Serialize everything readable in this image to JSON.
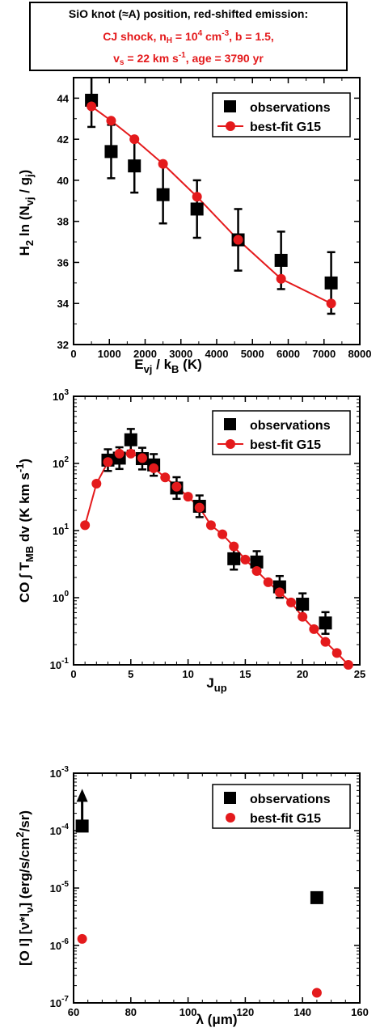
{
  "header": {
    "line1": "SiO knot (≈A) position, red-shifted emission:",
    "line2_a": "CJ shock, n",
    "line2_sub": "H",
    "line2_b": " = 10",
    "line2_sup": "4",
    "line2_c": " cm",
    "line2_sup2": "-3",
    "line2_d": ", b = 1.5,",
    "line3_a": "v",
    "line3_sub": "s",
    "line3_b": " = 22 km s",
    "line3_sup": "-1",
    "line3_c": ", age = 3790 yr"
  },
  "colors": {
    "model": "#e41a1c",
    "observations": "#000000"
  },
  "chart_data": [
    {
      "type": "scatter",
      "title": "",
      "xlabel": "E_vj / k_B (K)",
      "ylabel": "H_2 ln (N_vj / g_j)",
      "xlim": [
        0,
        8000
      ],
      "ylim": [
        32,
        45
      ],
      "xticks": [
        0,
        1000,
        2000,
        3000,
        4000,
        5000,
        6000,
        7000,
        8000
      ],
      "yticks": [
        32,
        34,
        36,
        38,
        40,
        42,
        44
      ],
      "legend": [
        "observations",
        "best-fit G15"
      ],
      "legend_position": "top-right",
      "series": [
        {
          "name": "observations",
          "x": [
            500,
            1050,
            1700,
            2500,
            3450,
            4600,
            5800,
            7200
          ],
          "y": [
            43.9,
            41.4,
            40.7,
            39.3,
            38.6,
            37.1,
            36.1,
            35.0
          ],
          "err": [
            1.3,
            1.3,
            1.3,
            1.4,
            1.4,
            1.5,
            1.4,
            1.5
          ]
        },
        {
          "name": "best-fit G15",
          "x": [
            500,
            1050,
            1700,
            2500,
            3450,
            4600,
            5800,
            7200
          ],
          "y": [
            43.6,
            42.9,
            42.0,
            40.8,
            39.2,
            37.1,
            35.2,
            34.0
          ]
        }
      ]
    },
    {
      "type": "scatter",
      "title": "",
      "xlabel": "J_up",
      "ylabel": "CO ∫ T_MB dv (K km s^-1)",
      "xlim": [
        0,
        25
      ],
      "ylim": [
        0.1,
        1000
      ],
      "yscale": "log",
      "xticks": [
        0,
        5,
        10,
        15,
        20,
        25
      ],
      "yticks": [
        0.1,
        1,
        10,
        100,
        1000
      ],
      "ytick_labels": [
        "10^-1",
        "10^0",
        "10^1",
        "10^2",
        "10^3"
      ],
      "legend": [
        "observations",
        "best-fit G15"
      ],
      "legend_position": "top-right",
      "series": [
        {
          "name": "observations",
          "x": [
            3,
            4,
            5,
            6,
            7,
            9,
            11,
            14,
            16,
            18,
            20,
            22
          ],
          "y": [
            112,
            120,
            225,
            118,
            95,
            43,
            23,
            3.8,
            3.4,
            1.45,
            0.8,
            0.42
          ]
        },
        {
          "name": "best-fit G15",
          "x": [
            1,
            2,
            3,
            4,
            5,
            6,
            7,
            8,
            9,
            10,
            11,
            12,
            13,
            14,
            15,
            16,
            17,
            18,
            19,
            20,
            21,
            22,
            23,
            24
          ],
          "y": [
            12,
            50,
            105,
            140,
            140,
            120,
            85,
            62,
            45,
            32,
            22,
            12,
            8.8,
            5.8,
            3.7,
            2.5,
            1.7,
            1.2,
            0.85,
            0.52,
            0.34,
            0.22,
            0.15,
            0.1
          ]
        }
      ]
    },
    {
      "type": "scatter",
      "title": "",
      "xlabel": "λ (μm)",
      "ylabel": "[O I] [ν*I_ν] (erg/s/cm^2/sr)",
      "xlim": [
        60,
        160
      ],
      "ylim": [
        1e-07,
        0.001
      ],
      "yscale": "log",
      "xticks": [
        60,
        80,
        100,
        120,
        140,
        160
      ],
      "yticks": [
        1e-07,
        1e-06,
        1e-05,
        0.0001,
        0.001
      ],
      "ytick_labels": [
        "10^-7",
        "10^-6",
        "10^-5",
        "10^-4",
        "10^-3"
      ],
      "legend": [
        "observations",
        "best-fit G15"
      ],
      "legend_position": "top-right",
      "series": [
        {
          "name": "observations",
          "x": [
            63,
            145
          ],
          "y": [
            0.00012,
            6.8e-06
          ],
          "lower_limit": [
            true,
            false
          ]
        },
        {
          "name": "best-fit G15",
          "x": [
            63,
            145
          ],
          "y": [
            1.3e-06,
            1.5e-07
          ]
        }
      ]
    }
  ]
}
